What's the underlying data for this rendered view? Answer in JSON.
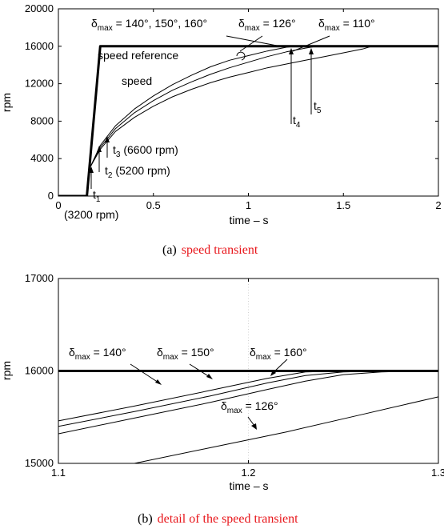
{
  "chart_data": [
    {
      "type": "line",
      "caption": {
        "prefix": "(a)",
        "text": "speed transient"
      },
      "xlabel": "time – s",
      "ylabel": "rpm",
      "xlim": [
        0,
        2
      ],
      "ylim": [
        0,
        20000
      ],
      "xticks": [
        "0",
        "0.5",
        "1",
        "1.5",
        "2"
      ],
      "yticks": [
        "0",
        "4000",
        "8000",
        "12000",
        "16000",
        "20000"
      ],
      "series": [
        {
          "name": "speed reference",
          "style": "thick",
          "x": [
            0,
            0.15,
            0.22,
            2.0
          ],
          "y": [
            0,
            0,
            16000,
            16000
          ]
        },
        {
          "name": "δmax = 140°",
          "style": "thin",
          "x": [
            0.17,
            0.22,
            0.3,
            0.4,
            0.5,
            0.6,
            0.7,
            0.8,
            0.9,
            1.0,
            1.1,
            1.2,
            1.25,
            2.0
          ],
          "y": [
            3200,
            5400,
            7500,
            9300,
            10700,
            11900,
            12900,
            13800,
            14500,
            15000,
            15500,
            15900,
            16000,
            16000
          ]
        },
        {
          "name": "δmax = 126°",
          "style": "thin",
          "x": [
            0.17,
            0.22,
            0.3,
            0.4,
            0.5,
            0.6,
            0.7,
            0.8,
            0.9,
            1.0,
            1.1,
            1.2,
            1.3,
            1.36,
            2.0
          ],
          "y": [
            3200,
            5200,
            7200,
            8900,
            10200,
            11300,
            12200,
            13000,
            13700,
            14300,
            14900,
            15400,
            15800,
            16000,
            16000
          ]
        },
        {
          "name": "δmax = 110°",
          "style": "thin",
          "x": [
            0.17,
            0.22,
            0.3,
            0.4,
            0.5,
            0.6,
            0.7,
            0.8,
            0.9,
            1.0,
            1.1,
            1.2,
            1.3,
            1.4,
            1.5,
            1.6,
            1.65,
            2.0
          ],
          "y": [
            3200,
            5000,
            6900,
            8400,
            9600,
            10600,
            11400,
            12100,
            12700,
            13200,
            13700,
            14100,
            14500,
            14900,
            15300,
            15700,
            16000,
            16000
          ]
        }
      ],
      "annotations": {
        "d140": {
          "sym": "δ",
          "sub": "max",
          "text": " = 140°, 150°, 160°"
        },
        "d126": {
          "sym": "δ",
          "sub": "max",
          "text": " = 126°"
        },
        "d110": {
          "sym": "δ",
          "sub": "max",
          "text": " = 110°"
        },
        "speed_ref": "speed reference",
        "speed": "speed",
        "t1": {
          "base": "t",
          "sub": "1",
          "note": ""
        },
        "t2": {
          "base": "t",
          "sub": "2",
          "note": " (5200 rpm)"
        },
        "t3": {
          "base": "t",
          "sub": "3",
          "note": " (6600 rpm)"
        },
        "t4": {
          "base": "t",
          "sub": "4"
        },
        "t5": {
          "base": "t",
          "sub": "5"
        },
        "rpm3200": "(3200 rpm)"
      }
    },
    {
      "type": "line",
      "caption": {
        "prefix": "(b)",
        "text": "detail of the speed transient"
      },
      "xlabel": "time – s",
      "ylabel": "rpm",
      "xlim": [
        1.1,
        1.3
      ],
      "ylim": [
        15000,
        17000
      ],
      "xticks": [
        "1.1",
        "1.2",
        "1.3"
      ],
      "yticks": [
        "15000",
        "16000",
        "17000"
      ],
      "series": [
        {
          "name": "speed reference",
          "style": "thick",
          "x": [
            1.1,
            1.3
          ],
          "y": [
            16000,
            16000
          ]
        },
        {
          "name": "δmax = 140°",
          "style": "thin",
          "x": [
            1.1,
            1.14,
            1.18,
            1.21,
            1.23,
            1.25,
            1.27,
            1.29
          ],
          "y": [
            15460,
            15620,
            15790,
            15920,
            15990,
            16000,
            16000,
            16000
          ]
        },
        {
          "name": "δmax = 150°",
          "style": "thin",
          "x": [
            1.1,
            1.14,
            1.18,
            1.21,
            1.23,
            1.25,
            1.27,
            1.29
          ],
          "y": [
            15400,
            15560,
            15730,
            15870,
            15950,
            15990,
            16000,
            16000
          ]
        },
        {
          "name": "δmax = 160°",
          "style": "thin",
          "x": [
            1.1,
            1.14,
            1.18,
            1.21,
            1.23,
            1.25,
            1.27,
            1.29
          ],
          "y": [
            15320,
            15490,
            15660,
            15800,
            15890,
            15960,
            15990,
            16000
          ]
        },
        {
          "name": "δmax = 126°",
          "style": "thin",
          "x": [
            1.14,
            1.18,
            1.22,
            1.26,
            1.3
          ],
          "y": [
            15000,
            15170,
            15340,
            15530,
            15720
          ]
        }
      ],
      "annotations": {
        "d140": {
          "sym": "δ",
          "sub": "max",
          "text": " = 140°"
        },
        "d150": {
          "sym": "δ",
          "sub": "max",
          "text": " = 150°"
        },
        "d160": {
          "sym": "δ",
          "sub": "max",
          "text": " = 160°"
        },
        "d126": {
          "sym": "δ",
          "sub": "max",
          "text": " = 126°"
        }
      }
    }
  ]
}
